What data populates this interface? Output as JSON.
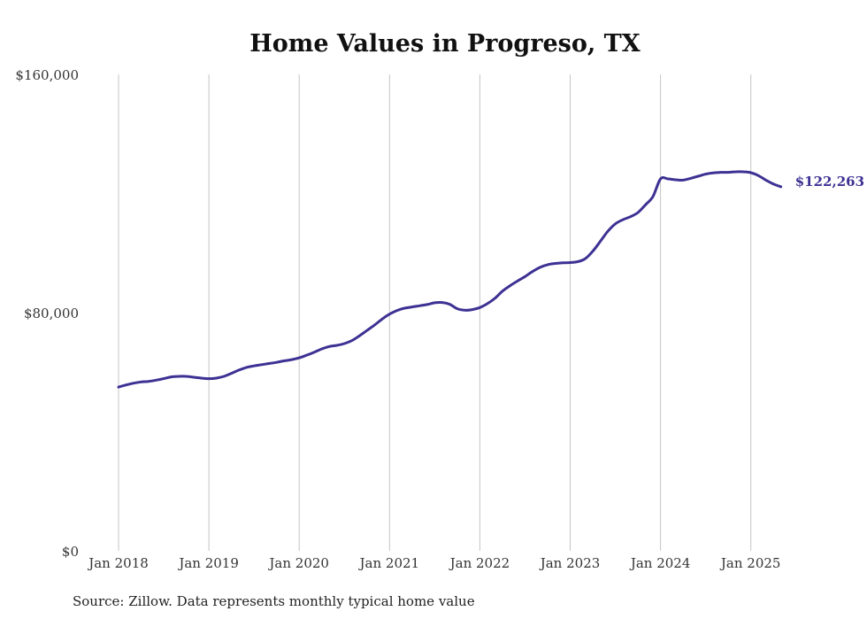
{
  "chart_data": {
    "type": "line",
    "title": "Home Values in Progreso, TX",
    "xlabel": "",
    "ylabel": "",
    "x_ticks": [
      "Jan 2018",
      "Jan 2019",
      "Jan 2020",
      "Jan 2021",
      "Jan 2022",
      "Jan 2023",
      "Jan 2024",
      "Jan 2025"
    ],
    "y_ticks": [
      "$0",
      "$80,000",
      "$160,000"
    ],
    "y_tick_values": [
      0,
      80000,
      160000
    ],
    "ylim": [
      0,
      160000
    ],
    "xlim": [
      "2018-01",
      "2025-01"
    ],
    "grid": "vertical",
    "series": [
      {
        "color": "#3d3193",
        "end_label": "$122,263",
        "points": [
          [
            "2018-01",
            55000
          ],
          [
            "2018-02",
            55700
          ],
          [
            "2018-03",
            56300
          ],
          [
            "2018-04",
            56700
          ],
          [
            "2018-05",
            56900
          ],
          [
            "2018-06",
            57300
          ],
          [
            "2018-07",
            57800
          ],
          [
            "2018-08",
            58400
          ],
          [
            "2018-09",
            58600
          ],
          [
            "2018-10",
            58600
          ],
          [
            "2018-11",
            58300
          ],
          [
            "2018-12",
            58000
          ],
          [
            "2019-01",
            57800
          ],
          [
            "2019-02",
            58000
          ],
          [
            "2019-03",
            58600
          ],
          [
            "2019-04",
            59600
          ],
          [
            "2019-05",
            60700
          ],
          [
            "2019-06",
            61600
          ],
          [
            "2019-07",
            62100
          ],
          [
            "2019-08",
            62500
          ],
          [
            "2019-09",
            62900
          ],
          [
            "2019-10",
            63300
          ],
          [
            "2019-11",
            63800
          ],
          [
            "2019-12",
            64200
          ],
          [
            "2020-01",
            64800
          ],
          [
            "2020-02",
            65700
          ],
          [
            "2020-03",
            66700
          ],
          [
            "2020-04",
            67800
          ],
          [
            "2020-05",
            68600
          ],
          [
            "2020-06",
            69000
          ],
          [
            "2020-07",
            69600
          ],
          [
            "2020-08",
            70600
          ],
          [
            "2020-09",
            72200
          ],
          [
            "2020-10",
            74000
          ],
          [
            "2020-11",
            75800
          ],
          [
            "2020-12",
            77800
          ],
          [
            "2021-01",
            79500
          ],
          [
            "2021-02",
            80700
          ],
          [
            "2021-03",
            81500
          ],
          [
            "2021-04",
            81900
          ],
          [
            "2021-05",
            82300
          ],
          [
            "2021-06",
            82700
          ],
          [
            "2021-07",
            83300
          ],
          [
            "2021-08",
            83400
          ],
          [
            "2021-09",
            82800
          ],
          [
            "2021-10",
            81300
          ],
          [
            "2021-11",
            80800
          ],
          [
            "2021-12",
            81000
          ],
          [
            "2022-01",
            81700
          ],
          [
            "2022-02",
            83000
          ],
          [
            "2022-03",
            84800
          ],
          [
            "2022-04",
            87200
          ],
          [
            "2022-05",
            89000
          ],
          [
            "2022-06",
            90600
          ],
          [
            "2022-07",
            92100
          ],
          [
            "2022-08",
            93800
          ],
          [
            "2022-09",
            95200
          ],
          [
            "2022-10",
            96100
          ],
          [
            "2022-11",
            96500
          ],
          [
            "2022-12",
            96700
          ],
          [
            "2023-01",
            96800
          ],
          [
            "2023-02",
            97100
          ],
          [
            "2023-03",
            98100
          ],
          [
            "2023-04",
            100600
          ],
          [
            "2023-05",
            103900
          ],
          [
            "2023-06",
            107300
          ],
          [
            "2023-07",
            109800
          ],
          [
            "2023-08",
            111200
          ],
          [
            "2023-09",
            112200
          ],
          [
            "2023-10",
            113600
          ],
          [
            "2023-11",
            116200
          ],
          [
            "2023-12",
            119000
          ],
          [
            "2024-01",
            124900
          ],
          [
            "2024-02",
            124900
          ],
          [
            "2024-03",
            124600
          ],
          [
            "2024-04",
            124500
          ],
          [
            "2024-05",
            125100
          ],
          [
            "2024-06",
            125800
          ],
          [
            "2024-07",
            126500
          ],
          [
            "2024-08",
            126900
          ],
          [
            "2024-09",
            127100
          ],
          [
            "2024-10",
            127100
          ],
          [
            "2024-11",
            127300
          ],
          [
            "2024-12",
            127300
          ],
          [
            "2025-01",
            127000
          ],
          [
            "2025-02",
            126000
          ],
          [
            "2025-03",
            124500
          ],
          [
            "2025-04",
            123200
          ],
          [
            "2025-05",
            122263
          ]
        ]
      }
    ]
  },
  "source_note": "Source: Zillow. Data represents monthly typical home value"
}
